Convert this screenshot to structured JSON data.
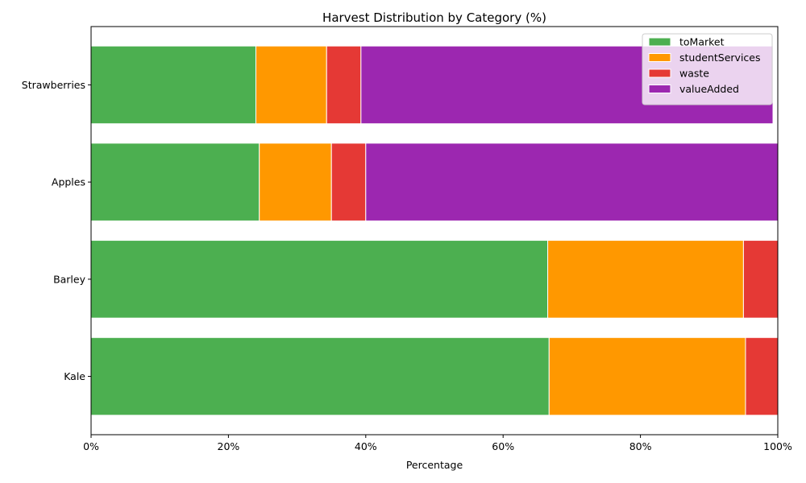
{
  "chart_data": {
    "type": "bar",
    "orientation": "horizontal",
    "stacked": true,
    "title": "Harvest Distribution by Category (%)",
    "xlabel": "Percentage",
    "ylabel": "",
    "xlim": [
      0,
      100
    ],
    "xticks": [
      0,
      20,
      40,
      60,
      80,
      100
    ],
    "xtick_labels": [
      "0%",
      "20%",
      "40%",
      "60%",
      "80%",
      "100%"
    ],
    "categories": [
      "Kale",
      "Barley",
      "Apples",
      "Strawberries"
    ],
    "series": [
      {
        "name": "toMarket",
        "color": "#4caf50",
        "values": [
          66.7,
          66.5,
          24.5,
          24.0
        ]
      },
      {
        "name": "studentServices",
        "color": "#ff9800",
        "values": [
          28.6,
          28.5,
          10.5,
          10.3
        ]
      },
      {
        "name": "waste",
        "color": "#e53935",
        "values": [
          4.7,
          5.0,
          5.0,
          5.0
        ]
      },
      {
        "name": "valueAdded",
        "color": "#9c27b0",
        "values": [
          0,
          0,
          60.0,
          60.0
        ]
      }
    ],
    "legend": "top-right",
    "grid": false
  }
}
